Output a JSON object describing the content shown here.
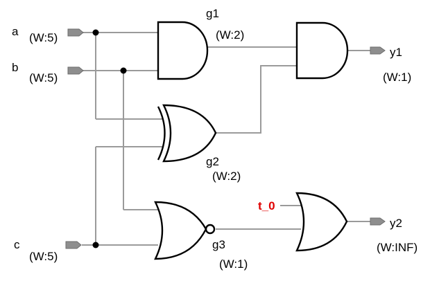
{
  "inputs": [
    {
      "id": "a",
      "label": "a",
      "width": "(W:5)"
    },
    {
      "id": "b",
      "label": "b",
      "width": "(W:5)"
    },
    {
      "id": "c",
      "label": "c",
      "width": "(W:5)"
    }
  ],
  "gates": [
    {
      "id": "g1",
      "label": "g1",
      "type": "AND",
      "width": "(W:2)"
    },
    {
      "id": "g2",
      "label": "g2",
      "type": "XOR",
      "width": "(W:2)"
    },
    {
      "id": "g3",
      "label": "g3",
      "type": "NOR",
      "width": "(W:1)"
    }
  ],
  "outputs": [
    {
      "id": "y1",
      "label": "y1",
      "width": "(W:1)"
    },
    {
      "id": "y2",
      "label": "y2",
      "width": "(W:INF)"
    }
  ],
  "signals": {
    "t0": {
      "label": "t_0",
      "color": "#e00000"
    }
  },
  "colors": {
    "wire": "#9a9a9a",
    "port": "#8e8e8e",
    "gate_stroke": "#000000"
  }
}
